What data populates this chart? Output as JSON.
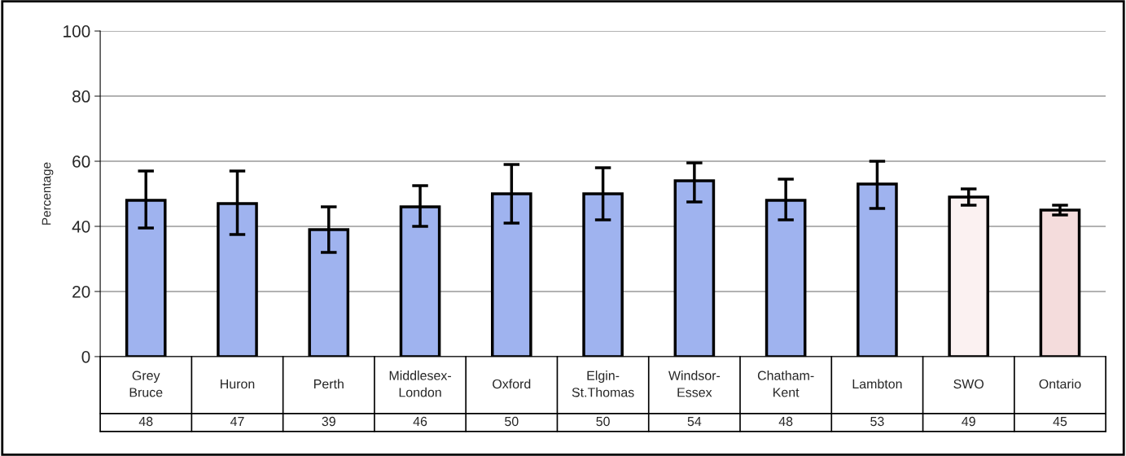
{
  "chart_data": {
    "type": "bar",
    "ylabel": "Percentage",
    "categories": [
      "Grey\nBruce",
      "Huron",
      "Perth",
      "Middlesex-\nLondon",
      "Oxford",
      "Elgin-\nSt.Thomas",
      "Windsor-\nEssex",
      "Chatham-\nKent",
      "Lambton",
      "SWO",
      "Ontario"
    ],
    "values": [
      48,
      47,
      39,
      46,
      50,
      50,
      54,
      48,
      53,
      49,
      45
    ],
    "errors": [
      [
        39.5,
        57
      ],
      [
        37.5,
        57
      ],
      [
        32,
        46
      ],
      [
        40,
        52.5
      ],
      [
        41,
        59
      ],
      [
        42,
        58
      ],
      [
        47.5,
        59.5
      ],
      [
        42,
        54.5
      ],
      [
        45.5,
        60
      ],
      [
        46.5,
        51.5
      ],
      [
        43.5,
        46.5
      ]
    ],
    "colors": [
      "#9fb3ef",
      "#9fb3ef",
      "#9fb3ef",
      "#9fb3ef",
      "#9fb3ef",
      "#9fb3ef",
      "#9fb3ef",
      "#9fb3ef",
      "#9fb3ef",
      "#fbf1f1",
      "#f4dcdc"
    ],
    "ylim": [
      0,
      100
    ],
    "yticks": [
      0,
      20,
      40,
      60,
      80,
      100
    ],
    "grid": "y",
    "data_labels": true
  }
}
